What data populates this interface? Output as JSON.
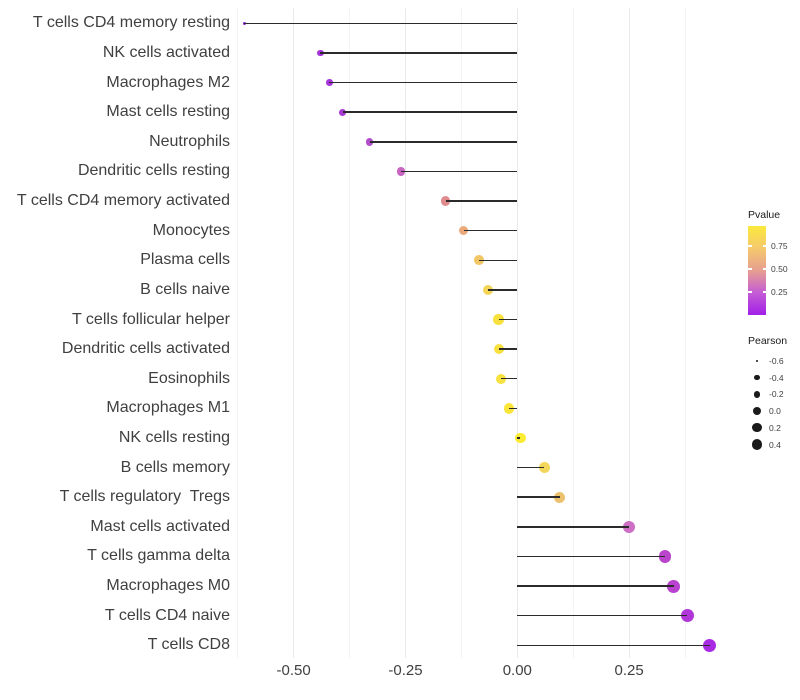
{
  "chart_data": {
    "type": "scatter",
    "variant": "lollipop",
    "title": "",
    "xlabel": "",
    "ylabel": "",
    "xlim": [
      -0.63,
      0.46
    ],
    "grid": "vertical-only",
    "legend_position": "right",
    "x_major_ticks": [
      {
        "value": -0.5,
        "label": "-0.50"
      },
      {
        "value": -0.25,
        "label": "-0.25"
      },
      {
        "value": 0.0,
        "label": "0.00"
      },
      {
        "value": 0.25,
        "label": "0.25"
      }
    ],
    "x_minor_ticks": [
      -0.625,
      -0.375,
      -0.125,
      0.125,
      0.375
    ],
    "points": [
      {
        "label": "T cells CD4 memory resting",
        "pearson": -0.61,
        "color": "#8c24d4"
      },
      {
        "label": "NK cells activated",
        "pearson": -0.44,
        "color": "#a534da"
      },
      {
        "label": "Macrophages M2",
        "pearson": -0.42,
        "color": "#a636d9"
      },
      {
        "label": "Mast cells resting",
        "pearson": -0.39,
        "color": "#a93bd5"
      },
      {
        "label": "Neutrophils",
        "pearson": -0.33,
        "color": "#b24dcb"
      },
      {
        "label": "Dendritic cells resting",
        "pearson": -0.26,
        "color": "#c765c0"
      },
      {
        "label": "T cells CD4 memory activated",
        "pearson": -0.16,
        "color": "#df8b8e"
      },
      {
        "label": "Monocytes",
        "pearson": -0.12,
        "color": "#eaaa7c"
      },
      {
        "label": "Plasma cells",
        "pearson": -0.085,
        "color": "#f1c765"
      },
      {
        "label": "B cells naive",
        "pearson": -0.066,
        "color": "#f5d557"
      },
      {
        "label": "T cells follicular helper",
        "pearson": -0.042,
        "color": "#f8e13f"
      },
      {
        "label": "Dendritic cells activated",
        "pearson": -0.04,
        "color": "#f8e13f"
      },
      {
        "label": "Eosinophils",
        "pearson": -0.037,
        "color": "#f8e240"
      },
      {
        "label": "Macrophages M1",
        "pearson": -0.018,
        "color": "#fae63a"
      },
      {
        "label": "NK cells resting",
        "pearson": 0.007,
        "color": "#fcec31"
      },
      {
        "label": "B cells memory",
        "pearson": 0.06,
        "color": "#f3d75b"
      },
      {
        "label": "T cells regulatory  Tregs",
        "pearson": 0.095,
        "color": "#ecc26e"
      },
      {
        "label": "Mast cells activated",
        "pearson": 0.25,
        "color": "#cc6fc5"
      },
      {
        "label": "T cells gamma delta",
        "pearson": 0.33,
        "color": "#bb44cd"
      },
      {
        "label": "Macrophages M0",
        "pearson": 0.35,
        "color": "#b942d1"
      },
      {
        "label": "T cells CD4 naive",
        "pearson": 0.38,
        "color": "#b136da"
      },
      {
        "label": "T cells CD8",
        "pearson": 0.43,
        "color": "#a82be3"
      }
    ],
    "legend": {
      "pvalue": {
        "title": "Pvalue",
        "tick_labels": [
          "0.75",
          "0.50",
          "0.25"
        ],
        "tick_values": [
          0.75,
          0.5,
          0.25
        ],
        "range": [
          0,
          0.97
        ],
        "gradient_bottom_to_top": [
          "#a21fe8",
          "#c45cd4",
          "#e79f90",
          "#f5c96d",
          "#fbe93c"
        ]
      },
      "pearson": {
        "title": "Pearson",
        "tick_labels": [
          "-0.6",
          "-0.4",
          "-0.2",
          "0.0",
          "0.2",
          "0.4"
        ],
        "tick_values": [
          -0.6,
          -0.4,
          -0.2,
          0.0,
          0.2,
          0.4
        ],
        "dot_color": "#1a1a1a"
      }
    },
    "colors": {
      "stem": "#2b2b2b",
      "grid_major": "#e9e9e9",
      "grid_minor": "#f4f4f4",
      "axis_text": "#404040",
      "background": "#ffffff"
    }
  }
}
